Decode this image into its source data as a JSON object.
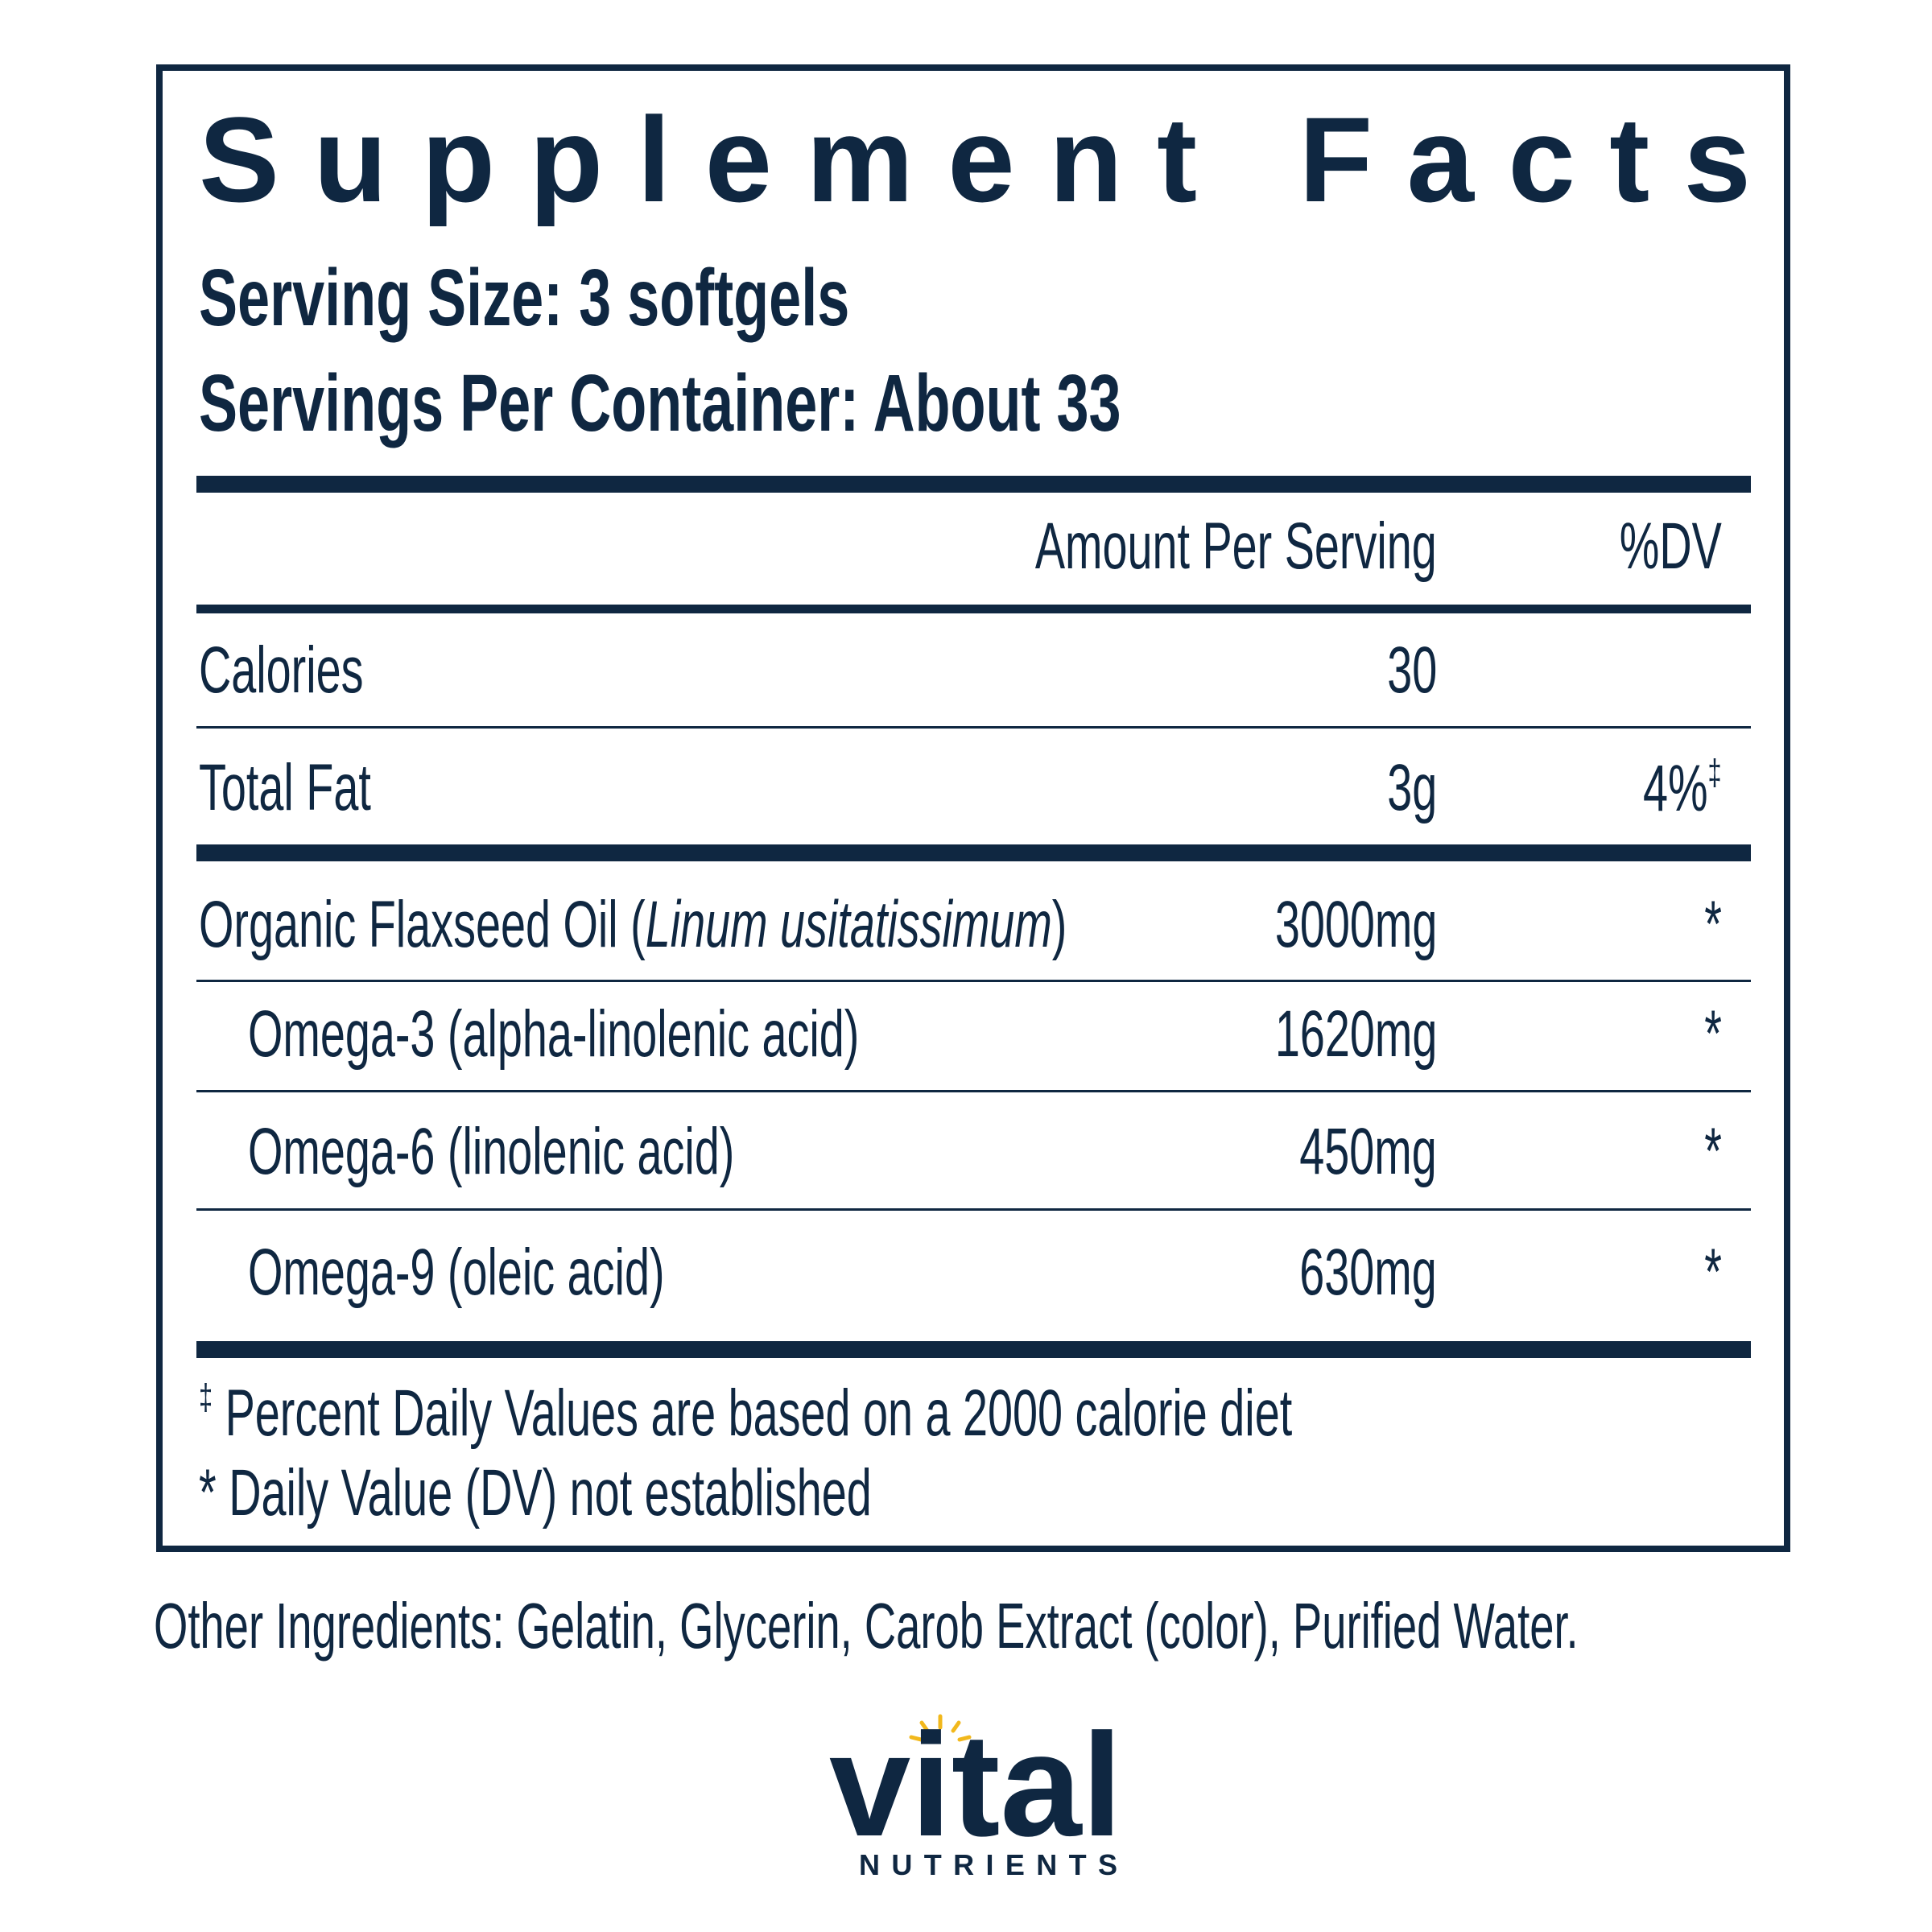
{
  "title": "Supplement Facts",
  "serving_size": "Serving Size: 3 softgels",
  "servings_per_container": "Servings Per Container: About 33",
  "table": {
    "header": {
      "amount": "Amount Per Serving",
      "dv": "%DV"
    },
    "rows": [
      {
        "name": "Calories",
        "amount": "30"
      },
      {
        "name": "Total Fat",
        "amount": "3g",
        "dv": "4%",
        "dv_mark": "‡"
      },
      {
        "name": [
          "Organic Flaxseed Oil (",
          "Linum usitatissimum",
          ")"
        ],
        "amount": "3000mg",
        "dv": "*"
      },
      {
        "name": "Omega-3 (alpha-linolenic acid)",
        "amount": "1620mg",
        "dv": "*",
        "indent": true
      },
      {
        "name": "Omega-6 (linolenic acid)",
        "amount": "450mg",
        "dv": "*",
        "indent": true
      },
      {
        "name": "Omega-9 (oleic acid)",
        "amount": "630mg",
        "dv": "*",
        "indent": true
      }
    ]
  },
  "footnotes": [
    {
      "mark": "‡",
      "text": "Percent Daily Values are based on a 2000 calorie diet"
    },
    {
      "text": "* Daily Value (DV) not established"
    }
  ],
  "other_ingredients": "Other Ingredients: Gelatin, Glycerin, Carob Extract (color), Purified Water.",
  "logo": {
    "brand": "vital",
    "tagline": "NUTRIENTS"
  }
}
